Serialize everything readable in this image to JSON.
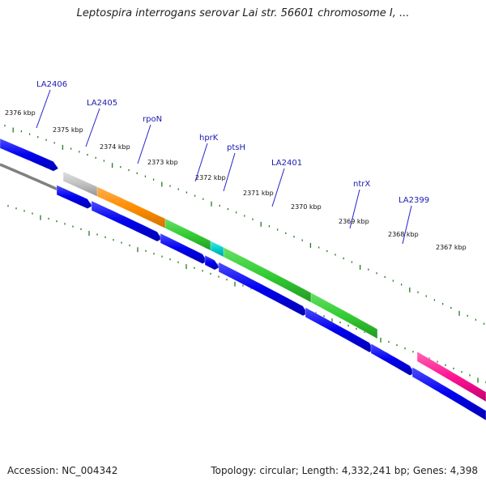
{
  "title": "Leptospira interrogans serovar Lai str. 56601 chromosome I, ...",
  "footer": {
    "accession": "Accession: NC_004342",
    "stats": "Topology: circular; Length: 4,332,241 bp; Genes: 4,398"
  },
  "colors": {
    "forward_cds": "#0000ee",
    "reverse_cds": "#0000ee",
    "backbone": "#808080",
    "tick": "#1f7a1f",
    "label_line": "#2222cc",
    "label_text": "#1a1ab0",
    "other_gene": "#c0c0c0",
    "rpoN": "#ff8c00",
    "pts": "#33cc33",
    "hprK": "#00cccc",
    "ntr": "#33cc33",
    "LA2399": "#ff1493"
  },
  "kbp_labels": [
    "2376 kbp",
    "2375 kbp",
    "2374 kbp",
    "2373 kbp",
    "2372 kbp",
    "2371 kbp",
    "2370 kbp",
    "2369 kbp",
    "2368 kbp",
    "2367 kbp"
  ],
  "gene_labels": [
    "LA2406",
    "LA2405",
    "rpoN",
    "hprK",
    "ptsH",
    "LA2401",
    "ntrX",
    "LA2399"
  ]
}
